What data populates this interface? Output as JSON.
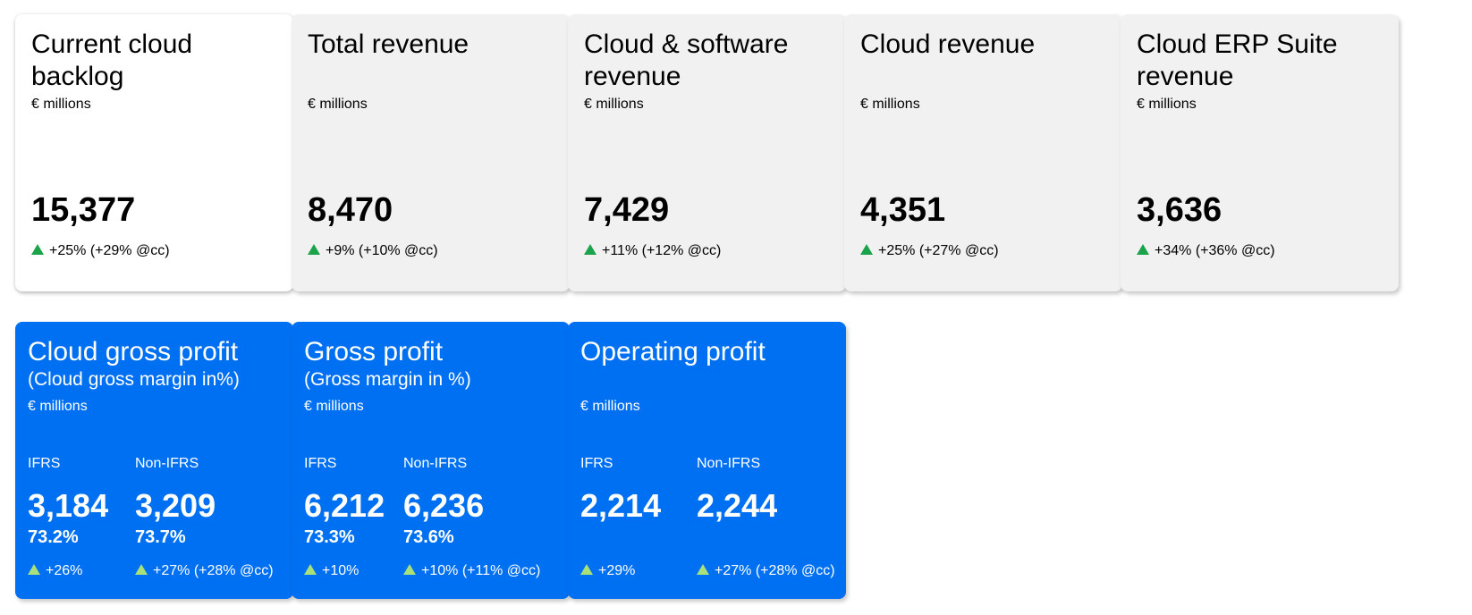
{
  "kpis": [
    {
      "title": "Current cloud backlog",
      "unit": "€ millions",
      "value": "15,377",
      "change": "+25% (+29% @cc)"
    },
    {
      "title": "Total revenue",
      "unit": "€ millions",
      "value": "8,470",
      "change": "+9% (+10% @cc)"
    },
    {
      "title": "Cloud & software revenue",
      "unit": "€ millions",
      "value": "7,429",
      "change": "+11% (+12% @cc)"
    },
    {
      "title": "Cloud revenue",
      "unit": "€ millions",
      "value": "4,351",
      "change": "+25% (+27% @cc)"
    },
    {
      "title": "Cloud ERP Suite revenue",
      "unit": "€ millions",
      "value": "3,636",
      "change": "+34% (+36% @cc)"
    }
  ],
  "profits": [
    {
      "title": "Cloud gross profit",
      "subtitle": "(Cloud gross margin in%)",
      "unit": "€ millions",
      "ifrs": {
        "label": "IFRS",
        "value": "3,184",
        "margin": "73.2%",
        "change": "+26%"
      },
      "non_ifrs": {
        "label": "Non-IFRS",
        "value": "3,209",
        "margin": "73.7%",
        "change": "+27% (+28% @cc)"
      }
    },
    {
      "title": "Gross profit",
      "subtitle": "(Gross margin in %)",
      "unit": "€ millions",
      "ifrs": {
        "label": "IFRS",
        "value": "6,212",
        "margin": "73.3%",
        "change": "+10%"
      },
      "non_ifrs": {
        "label": "Non-IFRS",
        "value": "6,236",
        "margin": "73.6%",
        "change": "+10% (+11% @cc)"
      }
    },
    {
      "title": "Operating profit",
      "subtitle": "",
      "unit": "€ millions",
      "ifrs": {
        "label": "IFRS",
        "value": "2,214",
        "margin": "",
        "change": "+29%"
      },
      "non_ifrs": {
        "label": "Non-IFRS",
        "value": "2,244",
        "margin": "",
        "change": "+27% (+28% @cc)"
      }
    }
  ],
  "colors": {
    "accent_blue": "#0070f2",
    "card_grey": "#f1f1f1",
    "up_green": "#1aa34a",
    "up_light_green": "#a8e07a"
  }
}
